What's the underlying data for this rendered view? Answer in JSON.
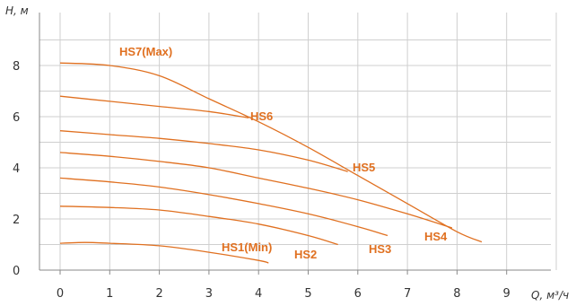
{
  "chart_data": {
    "type": "line",
    "title": "",
    "xlabel": "Q, м³/ч",
    "ylabel": "H, м",
    "xlim": [
      0,
      10
    ],
    "ylim": [
      0,
      9
    ],
    "x_ticks": [
      "0",
      "1",
      "2",
      "3",
      "4",
      "5",
      "6",
      "7",
      "8",
      "9"
    ],
    "y_ticks": [
      "0",
      "2",
      "4",
      "6",
      "8"
    ],
    "grid": true,
    "line_color": "#e07020",
    "series": [
      {
        "name": "HS7(Max)",
        "x": [
          0,
          1,
          2,
          3,
          4,
          5,
          6,
          7,
          8,
          8.5
        ],
        "y": [
          8.1,
          8.0,
          7.6,
          6.7,
          5.8,
          4.8,
          3.7,
          2.6,
          1.5,
          1.1
        ]
      },
      {
        "name": "HS6",
        "x": [
          0,
          1,
          2,
          3,
          3.8
        ],
        "y": [
          6.8,
          6.6,
          6.4,
          6.2,
          5.95
        ]
      },
      {
        "name": "HS5",
        "x": [
          0,
          1,
          2,
          3,
          4,
          5,
          5.8
        ],
        "y": [
          5.45,
          5.3,
          5.15,
          4.95,
          4.7,
          4.3,
          3.85
        ]
      },
      {
        "name": "HS4",
        "x": [
          0,
          1,
          2,
          3,
          4,
          5,
          6,
          7,
          7.9
        ],
        "y": [
          4.6,
          4.45,
          4.25,
          4.0,
          3.6,
          3.2,
          2.75,
          2.2,
          1.65
        ]
      },
      {
        "name": "HS3",
        "x": [
          0,
          1,
          2,
          3,
          4,
          5,
          6,
          6.6
        ],
        "y": [
          3.6,
          3.45,
          3.25,
          2.95,
          2.6,
          2.2,
          1.7,
          1.35
        ]
      },
      {
        "name": "HS2",
        "x": [
          0,
          1,
          2,
          3,
          4,
          5,
          5.6
        ],
        "y": [
          2.5,
          2.45,
          2.35,
          2.1,
          1.8,
          1.35,
          1.0
        ]
      },
      {
        "name": "HS1(Min)",
        "x": [
          0,
          0.5,
          1,
          2,
          3,
          4,
          4.2
        ],
        "y": [
          1.05,
          1.08,
          1.05,
          0.95,
          0.7,
          0.38,
          0.28
        ]
      }
    ]
  }
}
